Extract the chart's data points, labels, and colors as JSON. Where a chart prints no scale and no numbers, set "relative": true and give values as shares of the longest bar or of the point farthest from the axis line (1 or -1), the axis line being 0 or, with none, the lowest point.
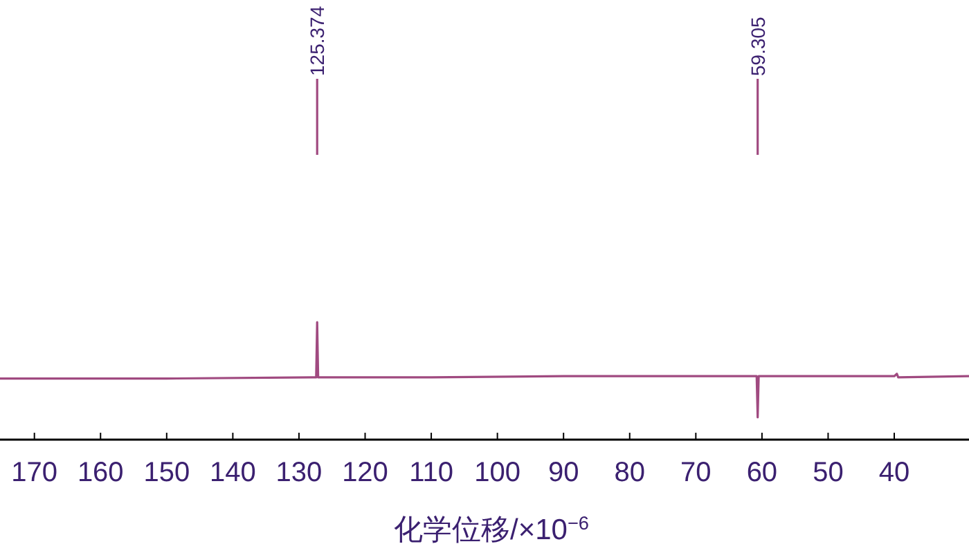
{
  "chart_data": {
    "type": "line",
    "relative": true,
    "xlabel": "化学位移/×10$^{−6}$",
    "xlim": [
      175.2,
      28.7
    ],
    "xticks": [
      170,
      160,
      150,
      140,
      130,
      120,
      110,
      100,
      90,
      80,
      70,
      60,
      50,
      40
    ],
    "x": [
      175.2,
      150,
      128,
      127.4,
      127.25,
      127.1,
      110,
      90,
      61,
      60.8,
      60.65,
      60.5,
      50,
      40,
      39.6,
      39.4,
      28.7
    ],
    "series": [
      {
        "color": "#a04a80",
        "values": [
          0.52,
          0.52,
          0.53,
          0.53,
          1.0,
          0.53,
          0.53,
          0.54,
          0.54,
          0.54,
          0.19,
          0.54,
          0.54,
          0.54,
          0.56,
          0.53,
          0.54
        ]
      }
    ],
    "annotations": [
      {
        "text": "125.374",
        "x": 127.25
      },
      {
        "text": "59.305",
        "x": 60.65
      }
    ]
  }
}
